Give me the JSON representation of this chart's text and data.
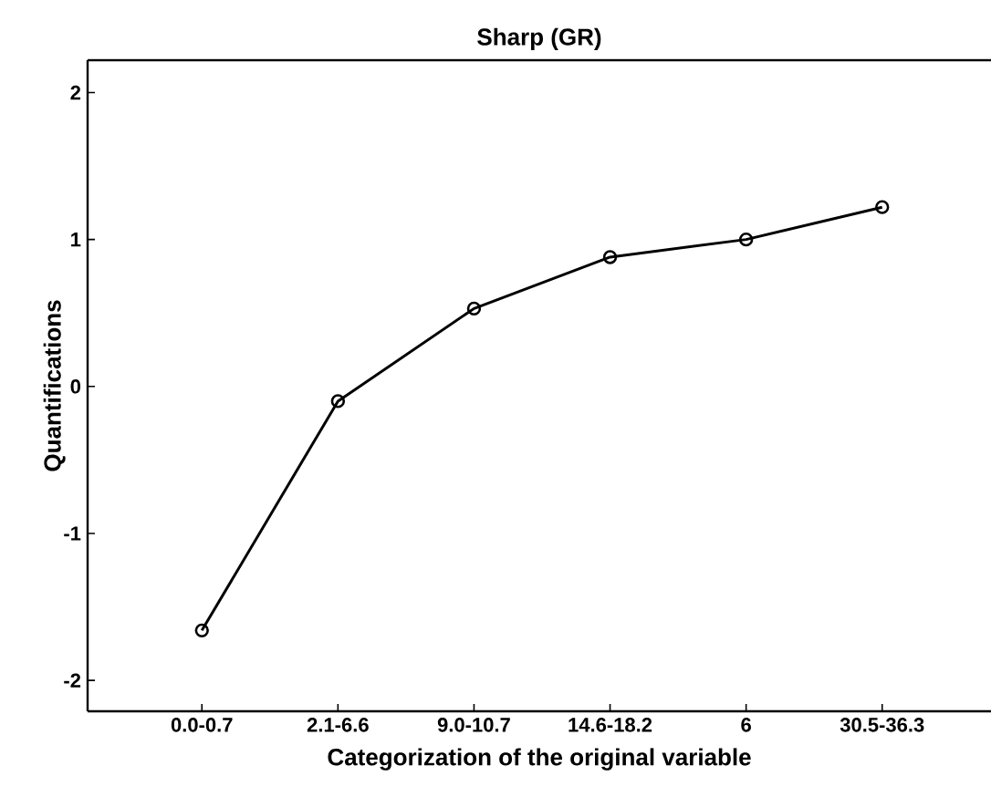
{
  "chart_data": {
    "type": "line",
    "title": "Sharp (GR)",
    "xlabel": "Categorization of the original variable",
    "ylabel": "Quantifications",
    "categories": [
      "0.0-0.7",
      "2.1-6.6",
      "9.0-10.7",
      "14.6-18.2",
      "6",
      "30.5-36.3"
    ],
    "series": [
      {
        "color": "#000000",
        "values": [
          -1.66,
          -0.1,
          0.53,
          0.88,
          1.0,
          1.22
        ]
      }
    ],
    "ylim": [
      -2.21,
      2.22
    ],
    "yticks": [
      -2,
      -1,
      0,
      1,
      2
    ],
    "marker": "circle",
    "line_style": "solid",
    "grid": false
  }
}
